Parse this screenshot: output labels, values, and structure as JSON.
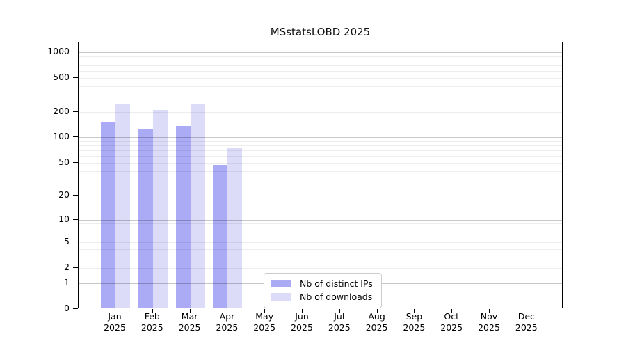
{
  "chart_data": {
    "type": "bar",
    "title": "MSstatsLOBD 2025",
    "x_axis": {
      "year": "2025",
      "months": [
        "Jan",
        "Feb",
        "Mar",
        "Apr",
        "May",
        "Jun",
        "Jul",
        "Aug",
        "Sep",
        "Oct",
        "Nov",
        "Dec"
      ]
    },
    "y_axis": {
      "scale": "log1p",
      "ticks": [
        0,
        1,
        2,
        5,
        10,
        20,
        50,
        100,
        200,
        500,
        1000
      ],
      "major_gridlines": [
        1,
        10,
        100,
        1000
      ],
      "ylim": [
        0,
        1275
      ],
      "grid": true
    },
    "series": [
      {
        "name": "Nb of distinct IPs",
        "color": "#aaaaf5",
        "values": [
          150,
          125,
          136,
          47,
          0,
          0,
          0,
          0,
          0,
          0,
          0,
          0
        ]
      },
      {
        "name": "Nb of downloads",
        "color": "#dcdcf8",
        "values": [
          245,
          212,
          247,
          75,
          0,
          0,
          0,
          0,
          0,
          0,
          0,
          0
        ]
      }
    ],
    "legend": {
      "position": "bottom-center-inside"
    }
  }
}
